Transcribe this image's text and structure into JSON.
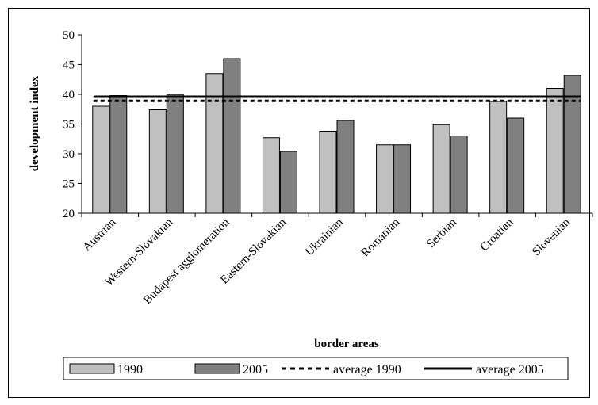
{
  "chart_data": {
    "type": "bar",
    "title": "",
    "xlabel": "border areas",
    "ylabel": "development index",
    "ylim": [
      20,
      50
    ],
    "yticks": [
      20,
      25,
      30,
      35,
      40,
      45,
      50
    ],
    "categories": [
      "Austrian",
      "Western-Slovakian",
      "Budapest agglomeration",
      "Eastern-Slovakian",
      "Ukrainian",
      "Romanian",
      "Serbian",
      "Croatian",
      "Slovenian"
    ],
    "series": [
      {
        "name": "1990",
        "color": "#c0c0c0",
        "values": [
          38.0,
          37.4,
          43.5,
          32.7,
          33.8,
          31.5,
          34.9,
          38.8,
          41.0
        ]
      },
      {
        "name": "2005",
        "color": "#808080",
        "values": [
          39.8,
          40.0,
          46.0,
          30.4,
          35.6,
          31.5,
          33.0,
          36.0,
          43.2
        ]
      }
    ],
    "reference_lines": [
      {
        "name": "average 1990",
        "value": 38.9,
        "style": "dashed",
        "color": "#000000"
      },
      {
        "name": "average 2005",
        "value": 39.6,
        "style": "solid",
        "color": "#000000"
      }
    ],
    "grid": false,
    "legend_position": "bottom"
  }
}
